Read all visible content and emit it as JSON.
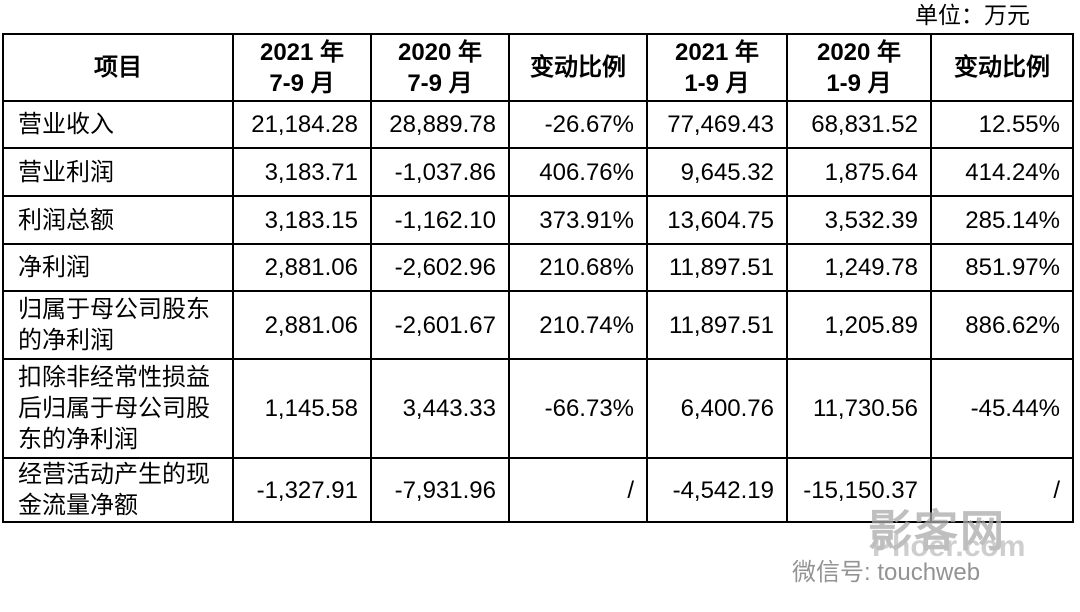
{
  "unit": "单位：万元",
  "table": {
    "header": [
      [
        "项目"
      ],
      [
        "2021 年",
        "7-9 月"
      ],
      [
        "2020 年",
        "7-9 月"
      ],
      [
        "变动比例"
      ],
      [
        "2021 年",
        "1-9 月"
      ],
      [
        "2020 年",
        "1-9 月"
      ],
      [
        "变动比例"
      ]
    ],
    "rows": [
      [
        "营业收入",
        "21,184.28",
        "28,889.78",
        "-26.67%",
        "77,469.43",
        "68,831.52",
        "12.55%"
      ],
      [
        "营业利润",
        "3,183.71",
        "-1,037.86",
        "406.76%",
        "9,645.32",
        "1,875.64",
        "414.24%"
      ],
      [
        "利润总额",
        "3,183.15",
        "-1,162.10",
        "373.91%",
        "13,604.75",
        "3,532.39",
        "285.14%"
      ],
      [
        "净利润",
        "2,881.06",
        "-2,602.96",
        "210.68%",
        "11,897.51",
        "1,249.78",
        "851.97%"
      ],
      [
        "归属于母公司股东的净利润",
        "2,881.06",
        "-2,601.67",
        "210.74%",
        "11,897.51",
        "1,205.89",
        "886.62%"
      ],
      [
        "扣除非经常性损益后归属于母公司股东的净利润",
        "1,145.58",
        "3,443.33",
        "-66.73%",
        "6,400.76",
        "11,730.56",
        "-45.44%"
      ],
      [
        "经营活动产生的现金流量净额",
        "-1,327.91",
        "-7,931.96",
        "/",
        "-4,542.19",
        "-15,150.37",
        "/"
      ]
    ]
  },
  "watermark": {
    "site": "影客网",
    "domain": "Phoer.com",
    "wechat": "微信号: touchweb"
  }
}
